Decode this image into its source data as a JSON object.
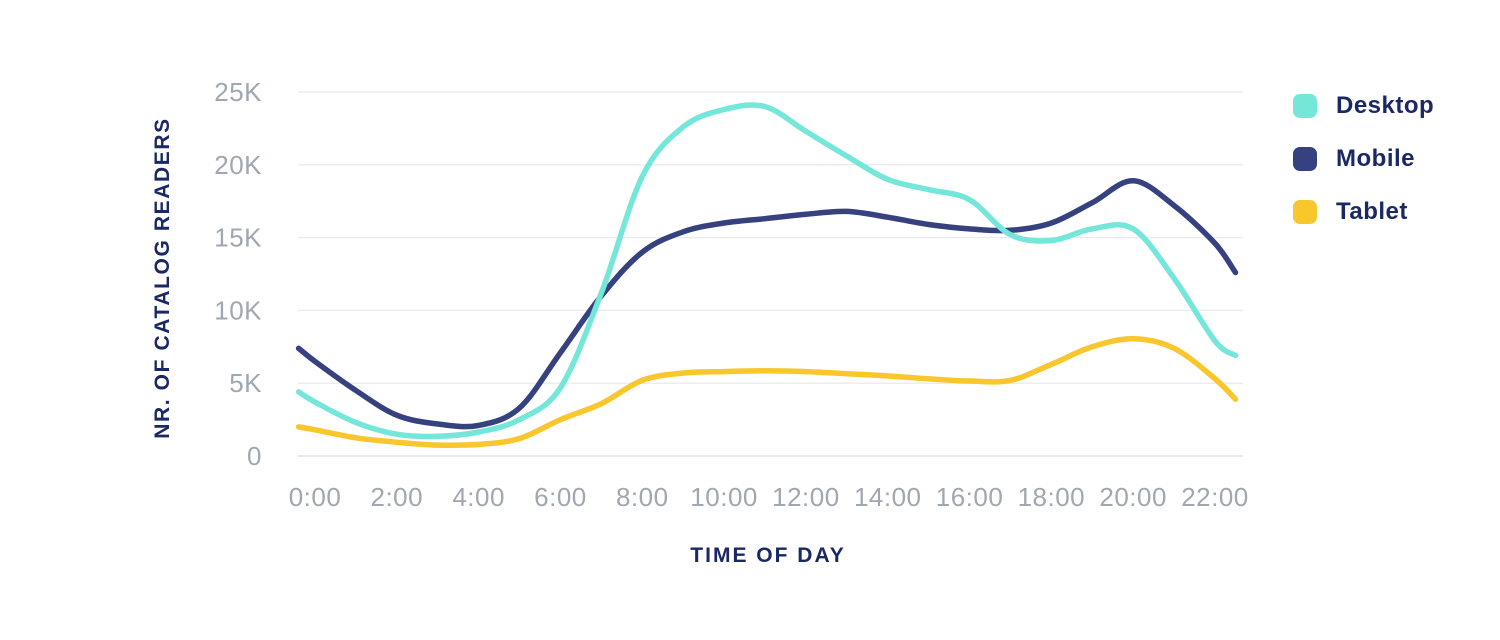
{
  "page": {
    "background": "#ffffff",
    "colors": {
      "title_text": "#1B2864",
      "tick_text": "#A1A7AF",
      "gridline": "#ECEDEF",
      "baseline": "#E4E4E7"
    }
  },
  "chart_data": {
    "type": "line",
    "title": "",
    "xlabel": "TIME OF DAY",
    "ylabel": "NR. OF CATALOG READERS",
    "unit": "thousands of readers (K)",
    "grid": true,
    "legend_position": "right",
    "ylim": [
      0,
      25
    ],
    "y_ticks": [
      {
        "value": 25,
        "label": "25K"
      },
      {
        "value": 20,
        "label": "20K"
      },
      {
        "value": 15,
        "label": "15K"
      },
      {
        "value": 10,
        "label": "10K"
      },
      {
        "value": 5,
        "label": "5K"
      },
      {
        "value": 0,
        "label": "0"
      }
    ],
    "x_ticks": [
      {
        "hour": 0,
        "label": "0:00"
      },
      {
        "hour": 2,
        "label": "2:00"
      },
      {
        "hour": 4,
        "label": "4:00"
      },
      {
        "hour": 6,
        "label": "6:00"
      },
      {
        "hour": 8,
        "label": "8:00"
      },
      {
        "hour": 10,
        "label": "10:00"
      },
      {
        "hour": 12,
        "label": "12:00"
      },
      {
        "hour": 14,
        "label": "14:00"
      },
      {
        "hour": 16,
        "label": "16:00"
      },
      {
        "hour": 18,
        "label": "18:00"
      },
      {
        "hour": 20,
        "label": "20:00"
      },
      {
        "hour": 22,
        "label": "22:00"
      }
    ],
    "x_hours": [
      -0.4,
      0,
      1,
      2,
      3,
      4,
      5,
      6,
      7,
      8,
      9,
      10,
      11,
      12,
      13,
      14,
      15,
      16,
      17,
      18,
      19,
      20,
      21,
      22,
      22.5
    ],
    "series": [
      {
        "name": "Desktop",
        "color": "#74E6DA",
        "values_k": [
          4.4,
          3.7,
          2.3,
          1.5,
          1.35,
          1.65,
          2.5,
          4.7,
          11.2,
          19.2,
          22.6,
          23.8,
          24.0,
          22.3,
          20.6,
          19.0,
          18.3,
          17.6,
          15.2,
          14.8,
          15.6,
          15.6,
          12.2,
          7.9,
          6.9
        ]
      },
      {
        "name": "Mobile",
        "color": "#36427F",
        "values_k": [
          7.4,
          6.5,
          4.5,
          2.8,
          2.2,
          2.1,
          3.3,
          7.1,
          11.0,
          14.0,
          15.4,
          16.0,
          16.3,
          16.6,
          16.8,
          16.4,
          15.9,
          15.6,
          15.5,
          16.0,
          17.4,
          18.9,
          17.2,
          14.6,
          12.6
        ]
      },
      {
        "name": "Tablet",
        "color": "#F9C62B",
        "values_k": [
          2.0,
          1.8,
          1.25,
          0.95,
          0.75,
          0.8,
          1.2,
          2.5,
          3.6,
          5.2,
          5.7,
          5.8,
          5.85,
          5.8,
          5.65,
          5.5,
          5.3,
          5.15,
          5.2,
          6.3,
          7.5,
          8.05,
          7.4,
          5.3,
          3.9
        ]
      }
    ]
  }
}
